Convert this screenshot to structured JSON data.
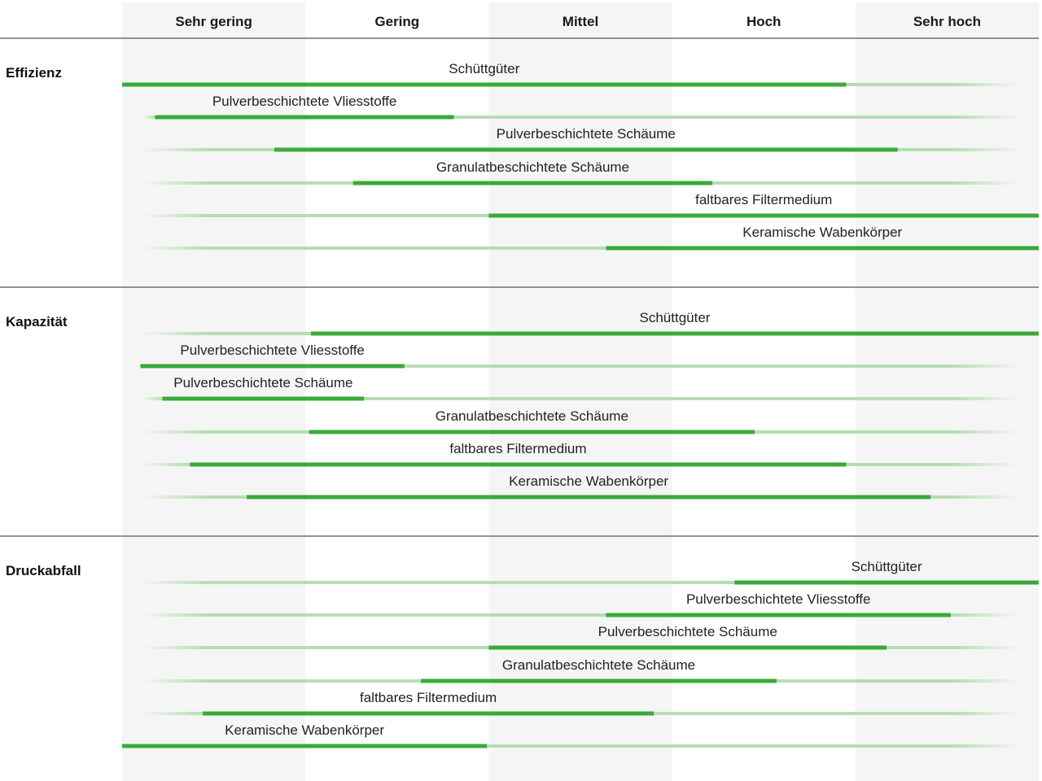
{
  "chart_data": {
    "type": "range-bar",
    "scale_categories": [
      "Sehr gering",
      "Gering",
      "Mittel",
      "Hoch",
      "Sehr hoch"
    ],
    "scale_range": [
      0,
      5
    ],
    "colors": {
      "bar": "#3aaa3a",
      "faint": "#b6ddb2",
      "band": "#f5f5f5",
      "rule": "#555555",
      "text": "#222222"
    },
    "groups": [
      {
        "label": "Effizienz",
        "items": [
          {
            "label": "Schüttgüter",
            "start": 0.0,
            "end": 3.95
          },
          {
            "label": "Pulverbeschichtete Vliesstoffe",
            "start": 0.18,
            "end": 1.81
          },
          {
            "label": "Pulverbeschichtete Schäume",
            "start": 0.83,
            "end": 4.23
          },
          {
            "label": "Granulatbeschichtete Schäume",
            "start": 1.26,
            "end": 3.22
          },
          {
            "label": "faltbares Filtermedium",
            "start": 2.0,
            "end": 5.0
          },
          {
            "label": "Keramische Wabenkörper",
            "start": 2.64,
            "end": 5.0
          }
        ]
      },
      {
        "label": "Kapazität",
        "items": [
          {
            "label": "Schüttgüter",
            "start": 1.03,
            "end": 5.0
          },
          {
            "label": "Pulverbeschichtete Vliesstoffe",
            "start": 0.1,
            "end": 1.54
          },
          {
            "label": "Pulverbeschichtete Schäume",
            "start": 0.22,
            "end": 1.32
          },
          {
            "label": "Granulatbeschichtete Schäume",
            "start": 1.02,
            "end": 3.45
          },
          {
            "label": "faltbares Filtermedium",
            "start": 0.37,
            "end": 3.95
          },
          {
            "label": "Keramische Wabenkörper",
            "start": 0.68,
            "end": 4.41
          }
        ]
      },
      {
        "label": "Druckabfall",
        "items": [
          {
            "label": "Schüttgüter",
            "start": 3.34,
            "end": 5.0
          },
          {
            "label": "Pulverbeschichtete Vliesstoffe",
            "start": 2.64,
            "end": 4.52
          },
          {
            "label": "Pulverbeschichtete Schäume",
            "start": 2.0,
            "end": 4.17
          },
          {
            "label": "Granulatbeschichtete Schäume",
            "start": 1.63,
            "end": 3.57
          },
          {
            "label": "faltbares Filtermedium",
            "start": 0.44,
            "end": 2.9
          },
          {
            "label": "Keramische Wabenkörper",
            "start": 0.0,
            "end": 1.99
          }
        ]
      }
    ]
  }
}
